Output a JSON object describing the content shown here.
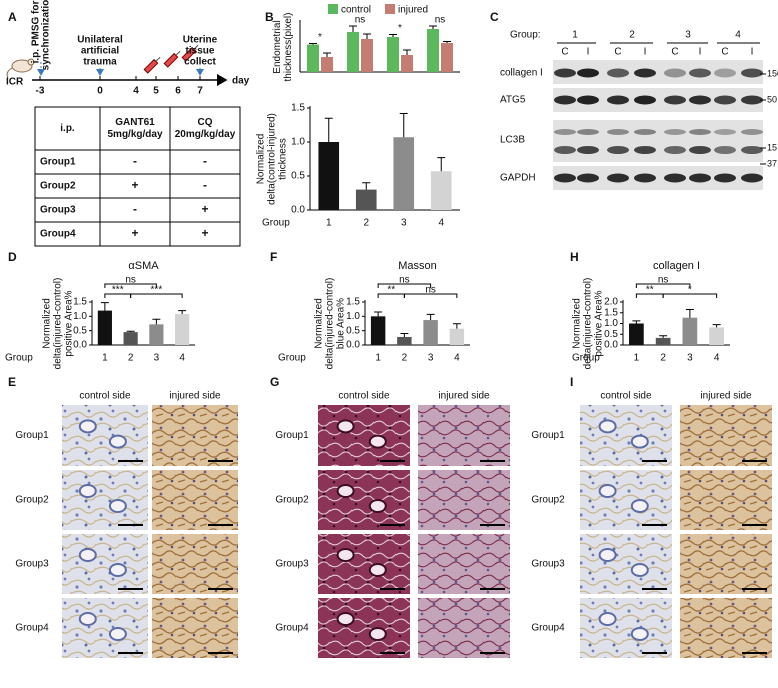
{
  "panel_labels": [
    "A",
    "B",
    "C",
    "D",
    "E",
    "F",
    "G",
    "H",
    "I"
  ],
  "panel_a": {
    "animal": "ICR",
    "events": [
      [
        "i.p. PMSG for",
        "synchronization"
      ],
      [
        "Unilateral",
        "artificial",
        "trauma"
      ],
      [
        "Uterine",
        "tissue",
        "collect"
      ]
    ],
    "days": [
      -3,
      0,
      4,
      5,
      6,
      7
    ],
    "day_unit": "day",
    "table": {
      "header": [
        "i.p.",
        [
          "GANT61",
          "5mg/kg/day"
        ],
        [
          "CQ",
          "20mg/kg/day"
        ]
      ],
      "rows": [
        [
          "Group1",
          "-",
          "-"
        ],
        [
          "Group2",
          "+",
          "-"
        ],
        [
          "Group3",
          "-",
          "+"
        ],
        [
          "Group4",
          "+",
          "+"
        ]
      ]
    }
  },
  "panel_c": {
    "group_title": "Group:",
    "groups": [
      "1",
      "2",
      "3",
      "4"
    ],
    "lanes": [
      "C",
      "I",
      "C",
      "I",
      "C",
      "I",
      "C",
      "I"
    ],
    "proteins": [
      "collagen I",
      "ATG5",
      "LC3B",
      "GAPDH"
    ],
    "markers": [
      150,
      50,
      15,
      37
    ]
  },
  "image_panels": [
    {
      "columns": [
        "control side",
        "injured side"
      ],
      "rows": [
        "Group1",
        "Group2",
        "Group3",
        "Group4"
      ]
    },
    {
      "columns": [
        "control side",
        "injured side"
      ],
      "rows": [
        "Group1",
        "Group2",
        "Group3",
        "Group4"
      ]
    },
    {
      "columns": [
        "control side",
        "injured side"
      ],
      "rows": [
        "Group1",
        "Group2",
        "Group3",
        "Group4"
      ]
    }
  ],
  "chart_data": [
    {
      "type": "bar",
      "ylabel": [
        "Endometrial",
        "thickness(pixel)"
      ],
      "categories": [
        null,
        null,
        null,
        null
      ],
      "series": [
        {
          "name": "control",
          "color": "#5cb85c",
          "values": [
            55,
            80,
            70,
            86
          ],
          "errors": [
            2,
            12,
            5,
            6
          ]
        },
        {
          "name": "injured",
          "color": "#c47c73",
          "values": [
            30,
            66,
            34,
            58
          ],
          "errors": [
            8,
            10,
            10,
            3
          ]
        }
      ],
      "ylim": [
        0,
        100
      ],
      "annotations": [
        "*",
        "ns",
        "*",
        "ns"
      ]
    },
    {
      "type": "bar",
      "ylabel": [
        "Normalized",
        "delta(control-injured)",
        "thickness"
      ],
      "xlabel": "Group",
      "categories": [
        "1",
        "2",
        "3",
        "4"
      ],
      "values": [
        1.0,
        0.3,
        1.07,
        0.57
      ],
      "errors": [
        0.35,
        0.1,
        0.35,
        0.2
      ],
      "colors": [
        "#111111",
        "#555555",
        "#8c8c8c",
        "#d3d3d3"
      ],
      "ylim": [
        0,
        1.5
      ],
      "yticks": [
        {
          "value": 0,
          "label": "0.0"
        },
        {
          "value": 0.5,
          "label": "0.5"
        },
        {
          "value": 1,
          "label": "1.0"
        },
        {
          "value": 1.5,
          "label": "1.5"
        }
      ]
    },
    {
      "type": "bar",
      "title": "αSMA",
      "ylabel": [
        "Normalized",
        "delta(injured-control)",
        "positive Area%"
      ],
      "xlabel": "Group",
      "categories": [
        "1",
        "2",
        "3",
        "4"
      ],
      "values": [
        1.2,
        0.45,
        0.72,
        1.08
      ],
      "errors": [
        0.28,
        0.03,
        0.18,
        0.12
      ],
      "colors": [
        "#111111",
        "#555555",
        "#8c8c8c",
        "#d3d3d3"
      ],
      "ylim": [
        0,
        1.5
      ],
      "yticks": [
        {
          "value": 0,
          "label": "0.0"
        },
        {
          "value": 0.5,
          "label": "0.5"
        },
        {
          "value": 1,
          "label": "1.0"
        },
        {
          "value": 1.5,
          "label": "1.5"
        }
      ],
      "annotations": [
        "ns",
        "***",
        "***"
      ]
    },
    {
      "type": "bar",
      "title": "Masson",
      "ylabel": [
        "Normalized",
        "delta(injured-control)",
        "blue Area%"
      ],
      "xlabel": "Group",
      "categories": [
        "1",
        "2",
        "3",
        "4"
      ],
      "values": [
        1.0,
        0.28,
        0.87,
        0.57
      ],
      "errors": [
        0.15,
        0.12,
        0.2,
        0.17
      ],
      "colors": [
        "#111111",
        "#555555",
        "#8c8c8c",
        "#d3d3d3"
      ],
      "ylim": [
        0,
        1.5
      ],
      "yticks": [
        {
          "value": 0,
          "label": "0.0"
        },
        {
          "value": 0.5,
          "label": "0.5"
        },
        {
          "value": 1,
          "label": "1.0"
        },
        {
          "value": 1.5,
          "label": "1.5"
        }
      ],
      "annotations": [
        "ns",
        "**",
        "ns"
      ]
    },
    {
      "type": "bar",
      "title": "collagen I",
      "ylabel": [
        "Normalized",
        "delta(injured-control)",
        "positive Area%"
      ],
      "xlabel": "Group",
      "categories": [
        "1",
        "2",
        "3",
        "4"
      ],
      "values": [
        1.0,
        0.33,
        1.27,
        0.82
      ],
      "errors": [
        0.12,
        0.1,
        0.38,
        0.13
      ],
      "colors": [
        "#111111",
        "#555555",
        "#8c8c8c",
        "#d3d3d3"
      ],
      "ylim": [
        0,
        2
      ],
      "yticks": [
        {
          "value": 0,
          "label": "0.0"
        },
        {
          "value": 0.5,
          "label": "0.5"
        },
        {
          "value": 1,
          "label": "1.0"
        },
        {
          "value": 1.5,
          "label": "1.5"
        },
        {
          "value": 2,
          "label": "2.0"
        }
      ],
      "annotations": [
        "ns",
        "**",
        "*"
      ]
    }
  ]
}
